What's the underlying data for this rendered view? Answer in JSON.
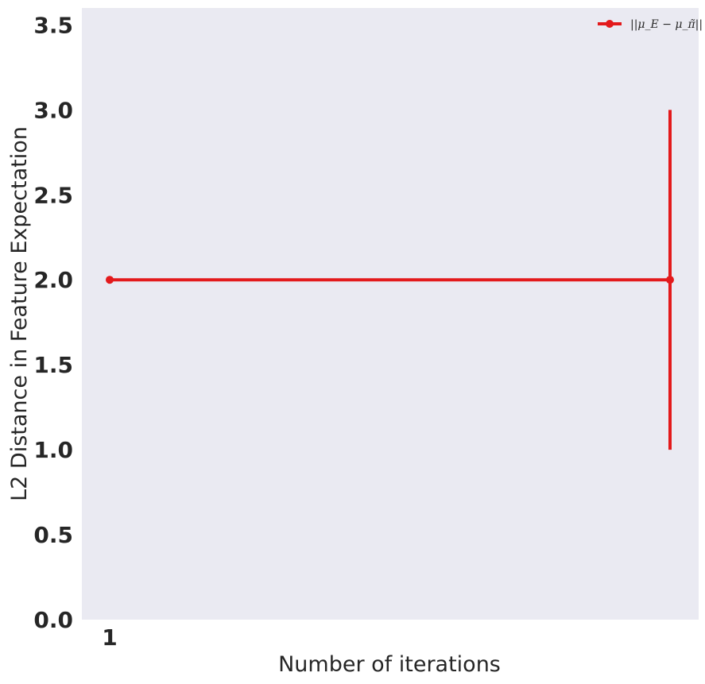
{
  "chart_data": {
    "type": "line",
    "title": "",
    "xlabel": "Number of iterations",
    "ylabel": "L2 Distance in Feature Expectation",
    "x_tick_labels": [
      "1"
    ],
    "y_tick_labels": [
      "0.0",
      "0.5",
      "1.0",
      "1.5",
      "2.0",
      "2.5",
      "3.0",
      "3.5"
    ],
    "ylim": [
      0,
      3.6
    ],
    "grid": false,
    "legend_position": "top-right",
    "series": [
      {
        "name": "||μ_E − μ_π̃||",
        "color": "#e31a1c",
        "points": [
          {
            "x": 1,
            "y": 2.0
          },
          {
            "x": 2,
            "y": 2.0,
            "error_low": 1.0,
            "error_high": 3.0
          }
        ]
      }
    ]
  },
  "legend": {
    "label": "||μ_E − μ_π̃||"
  }
}
